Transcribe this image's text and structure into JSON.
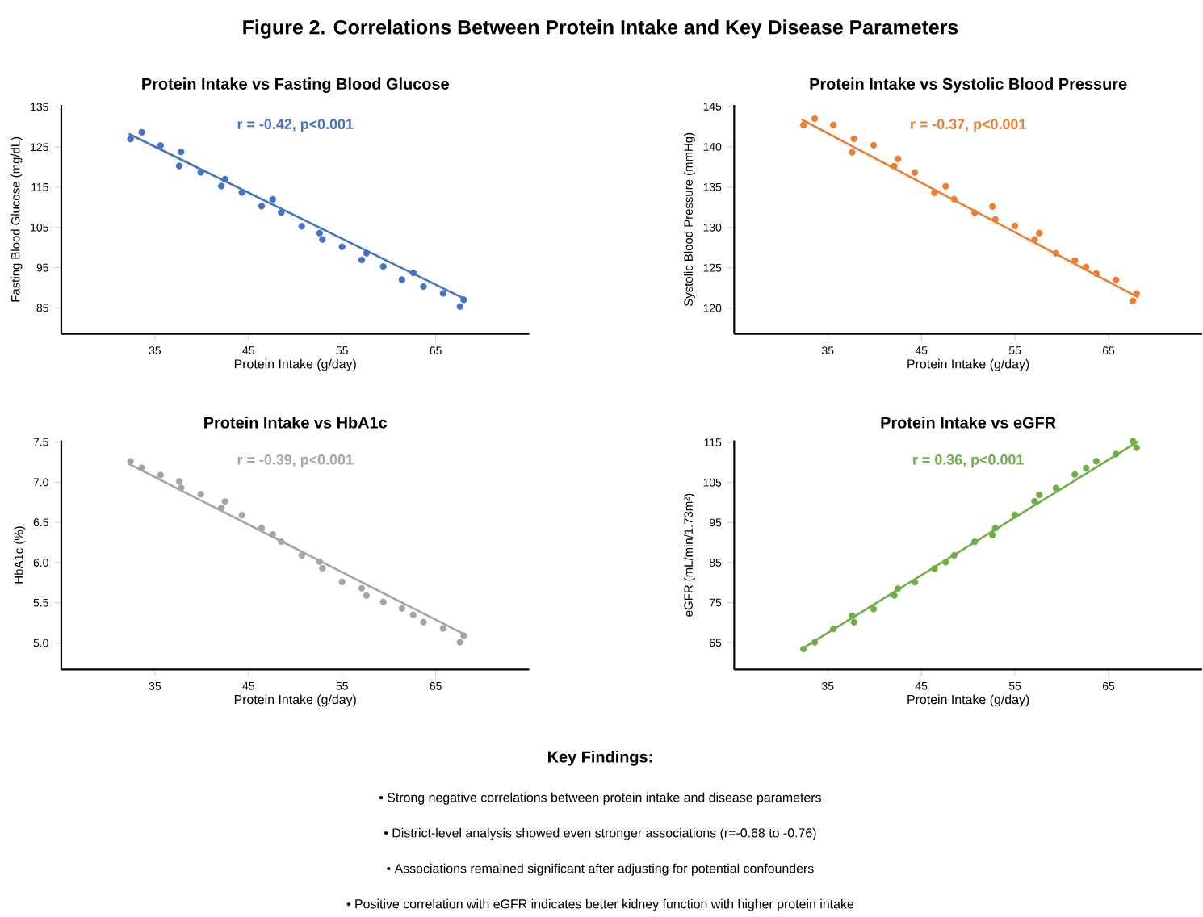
{
  "chart_data": [
    {
      "type": "other",
      "title": "Figure 2. Correlations Between Protein Intake and Key Disease Parameters"
    },
    {
      "type": "scatter",
      "title": "Protein Intake vs Fasting Blood Glucose",
      "xlabel": "Protein Intake (g/day)",
      "ylabel": "Fasting Blood Glucose (mg/dL)",
      "xlim": [
        25,
        75
      ],
      "xticks": [
        35,
        45,
        55,
        65
      ],
      "ylim": [
        78.5,
        135.5
      ],
      "yticks": [
        85,
        95,
        105,
        115,
        125,
        135
      ],
      "annotations": [
        "r = -0.42, p<0.001"
      ],
      "series": [
        {
          "type": "scatter",
          "marker": "circle",
          "color": "#4472c4",
          "x": [
            32.4,
            33.6,
            35.6,
            37.6,
            37.8,
            39.9,
            42.1,
            42.5,
            44.3,
            46.4,
            47.6,
            48.5,
            50.7,
            52.6,
            52.9,
            55.0,
            57.1,
            57.6,
            59.4,
            61.4,
            62.6,
            63.7,
            65.8,
            67.6,
            68.0
          ],
          "values": [
            127.0,
            128.7,
            125.4,
            120.3,
            123.8,
            118.7,
            115.3,
            117.0,
            113.7,
            110.3,
            112.0,
            108.7,
            105.3,
            103.6,
            102.0,
            100.2,
            96.9,
            98.6,
            95.3,
            92.0,
            93.7,
            90.3,
            88.6,
            85.3,
            87.0
          ]
        },
        {
          "type": "line",
          "color": "#4472c4",
          "x": [
            32.2,
            68.2
          ],
          "values": [
            128.3,
            87.1
          ]
        }
      ]
    },
    {
      "type": "scatter",
      "title": "Protein Intake vs Systolic Blood Pressure",
      "xlabel": "Protein Intake (g/day)",
      "ylabel": "Systolic Blood Pressure (mmHg)",
      "xlim": [
        25,
        75
      ],
      "xticks": [
        35,
        45,
        55,
        65
      ],
      "ylim": [
        116.8,
        145.2
      ],
      "yticks": [
        120,
        125,
        130,
        135,
        140,
        145
      ],
      "annotations": [
        "r = -0.37, p<0.001"
      ],
      "series": [
        {
          "type": "scatter",
          "marker": "circle",
          "color": "#ed7d31",
          "x": [
            32.4,
            33.6,
            35.6,
            37.6,
            37.8,
            39.9,
            42.1,
            42.5,
            44.3,
            46.4,
            47.6,
            48.5,
            50.7,
            52.6,
            52.9,
            55.0,
            57.1,
            57.6,
            59.4,
            61.4,
            62.6,
            63.7,
            65.8,
            67.6,
            68.0
          ],
          "values": [
            142.7,
            143.5,
            142.7,
            139.3,
            141.0,
            140.2,
            137.6,
            138.5,
            136.8,
            134.3,
            135.1,
            133.5,
            131.8,
            132.6,
            131.0,
            130.2,
            128.5,
            129.3,
            126.8,
            125.9,
            125.1,
            124.3,
            123.5,
            120.9,
            121.8
          ]
        },
        {
          "type": "line",
          "color": "#ed7d31",
          "x": [
            32.2,
            68.2
          ],
          "values": [
            143.4,
            121.3
          ]
        }
      ]
    },
    {
      "type": "scatter",
      "title": "Protein Intake vs HbA1c",
      "xlabel": "Protein Intake (g/day)",
      "ylabel": "HbA1c (%)",
      "xlim": [
        25,
        75
      ],
      "xticks": [
        35,
        45,
        55,
        65
      ],
      "ylim": [
        4.67,
        7.52
      ],
      "yticks": [
        {
          "value": 5.0,
          "label": "5.0"
        },
        5.5,
        {
          "value": 6.0,
          "label": "6.0"
        },
        6.5,
        {
          "value": 7.0,
          "label": "7.0"
        },
        7.5
      ],
      "annotations": [
        "r = -0.39, p<0.001"
      ],
      "series": [
        {
          "type": "scatter",
          "marker": "circle",
          "color": "#a5a5a5",
          "x": [
            32.4,
            33.6,
            35.6,
            37.6,
            37.8,
            39.9,
            42.1,
            42.5,
            44.3,
            46.4,
            47.6,
            48.5,
            50.7,
            52.6,
            52.9,
            55.0,
            57.1,
            57.6,
            59.4,
            61.4,
            62.6,
            63.7,
            65.8,
            67.6,
            68.0
          ],
          "values": [
            7.26,
            7.18,
            7.09,
            7.01,
            6.93,
            6.85,
            6.68,
            6.76,
            6.59,
            6.43,
            6.35,
            6.26,
            6.09,
            6.01,
            5.93,
            5.76,
            5.68,
            5.59,
            5.51,
            5.43,
            5.35,
            5.26,
            5.18,
            5.01,
            5.09
          ]
        },
        {
          "type": "line",
          "color": "#a5a5a5",
          "x": [
            32.2,
            68.2
          ],
          "values": [
            7.23,
            5.1
          ]
        }
      ]
    },
    {
      "type": "scatter",
      "title": "Protein Intake vs eGFR",
      "xlabel": "Protein Intake (g/day)",
      "ylabel": "eGFR (mL/min/1.73m²)",
      "xlim": [
        25,
        75
      ],
      "xticks": [
        35,
        45,
        55,
        65
      ],
      "ylim": [
        58.3,
        115.5
      ],
      "yticks": [
        65,
        75,
        85,
        95,
        105,
        115
      ],
      "annotations": [
        "r = 0.36, p<0.001"
      ],
      "series": [
        {
          "type": "scatter",
          "marker": "circle",
          "color": "#70ad47",
          "x": [
            32.4,
            33.6,
            35.6,
            37.6,
            37.8,
            39.9,
            42.1,
            42.5,
            44.3,
            46.4,
            47.6,
            48.5,
            50.7,
            52.6,
            52.9,
            55.0,
            57.1,
            57.6,
            59.4,
            61.4,
            62.6,
            63.7,
            65.8,
            67.6,
            68.0
          ],
          "values": [
            63.4,
            65.1,
            68.4,
            71.7,
            70.1,
            73.4,
            76.8,
            78.5,
            80.1,
            83.5,
            85.1,
            86.8,
            90.2,
            91.9,
            93.6,
            96.9,
            100.3,
            101.9,
            103.6,
            107.0,
            108.6,
            110.3,
            112.1,
            115.3,
            113.7
          ]
        },
        {
          "type": "line",
          "color": "#70ad47",
          "x": [
            32.2,
            68.2
          ],
          "values": [
            63.4,
            115.3
          ]
        }
      ]
    },
    {
      "type": "other",
      "title": "Key Findings:",
      "annotations": [
        "• Strong negative correlations between protein intake and disease parameters",
        "• District-level analysis showed even stronger associations (r=-0.68 to -0.76)",
        "• Associations remained significant after adjusting for potential confounders",
        "• Positive correlation with eGFR indicates better kidney function with higher protein intake"
      ]
    }
  ]
}
